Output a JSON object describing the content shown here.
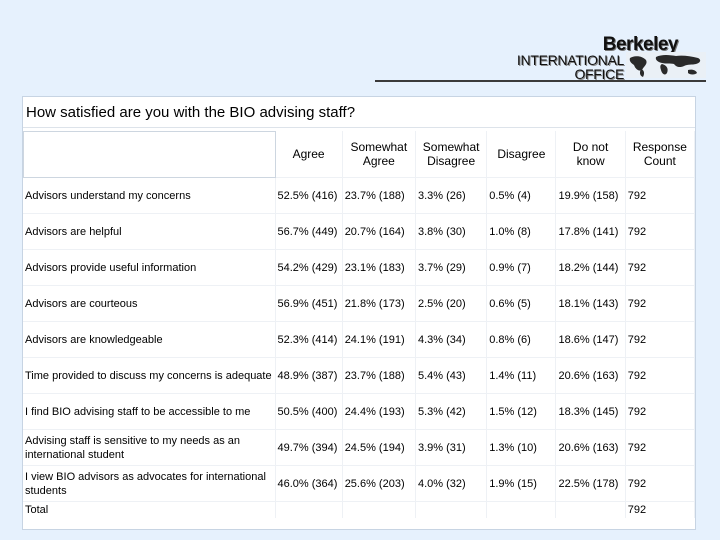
{
  "logo": {
    "name": "Berkeley",
    "line1": "INTERNATIONAL",
    "line2": "OFFICE"
  },
  "survey": {
    "question": "How satisfied are you with the BIO advising staff?",
    "headers": [
      "Agree",
      "Somewhat Agree",
      "Somewhat Disagree",
      "Disagree",
      "Do not know",
      "Response Count"
    ],
    "rows": [
      {
        "label": "Advisors understand my concerns",
        "agree": "52.5% (416)",
        "somewhat_agree": "23.7% (188)",
        "somewhat_disagree": "3.3% (26)",
        "disagree": "0.5% (4)",
        "do_not_know": "19.9% (158)",
        "count": "792"
      },
      {
        "label": "Advisors are helpful",
        "agree": "56.7% (449)",
        "somewhat_agree": "20.7% (164)",
        "somewhat_disagree": "3.8% (30)",
        "disagree": "1.0% (8)",
        "do_not_know": "17.8% (141)",
        "count": "792"
      },
      {
        "label": "Advisors provide useful information",
        "agree": "54.2% (429)",
        "somewhat_agree": "23.1% (183)",
        "somewhat_disagree": "3.7% (29)",
        "disagree": "0.9% (7)",
        "do_not_know": "18.2% (144)",
        "count": "792"
      },
      {
        "label": "Advisors are courteous",
        "agree": "56.9% (451)",
        "somewhat_agree": "21.8% (173)",
        "somewhat_disagree": "2.5% (20)",
        "disagree": "0.6% (5)",
        "do_not_know": "18.1% (143)",
        "count": "792"
      },
      {
        "label": "Advisors are knowledgeable",
        "agree": "52.3% (414)",
        "somewhat_agree": "24.1% (191)",
        "somewhat_disagree": "4.3% (34)",
        "disagree": "0.8% (6)",
        "do_not_know": "18.6% (147)",
        "count": "792"
      },
      {
        "label": "Time provided to discuss my concerns is adequate",
        "agree": "48.9% (387)",
        "somewhat_agree": "23.7% (188)",
        "somewhat_disagree": "5.4% (43)",
        "disagree": "1.4% (11)",
        "do_not_know": "20.6% (163)",
        "count": "792"
      },
      {
        "label": "I find BIO advising staff to be accessible to me",
        "agree": "50.5% (400)",
        "somewhat_agree": "24.4% (193)",
        "somewhat_disagree": "5.3% (42)",
        "disagree": "1.5% (12)",
        "do_not_know": "18.3% (145)",
        "count": "792"
      },
      {
        "label": "Advising staff is sensitive to my needs as an international student",
        "agree": "49.7% (394)",
        "somewhat_agree": "24.5% (194)",
        "somewhat_disagree": "3.9% (31)",
        "disagree": "1.3% (10)",
        "do_not_know": "20.6% (163)",
        "count": "792"
      },
      {
        "label": "I view BIO advisors as advocates for international students",
        "agree": "46.0% (364)",
        "somewhat_agree": "25.6% (203)",
        "somewhat_disagree": "4.0% (32)",
        "disagree": "1.9% (15)",
        "do_not_know": "22.5% (178)",
        "count": "792"
      }
    ],
    "total": {
      "label": "Total",
      "count": "792"
    }
  }
}
